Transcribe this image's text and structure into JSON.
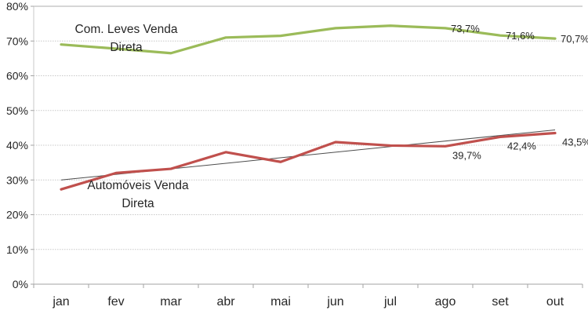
{
  "chart_data": {
    "type": "line",
    "title": "",
    "categories": [
      "jan",
      "fev",
      "mar",
      "abr",
      "mai",
      "jun",
      "jul",
      "ago",
      "set",
      "out"
    ],
    "series": [
      {
        "name": "Com. Leves Venda Direta",
        "label_lines": [
          "Com. Leves Venda",
          "Direta"
        ],
        "label_anchor": {
          "x": 161,
          "y": 42
        },
        "color": "#9BBB59",
        "values": [
          69.0,
          67.8,
          66.5,
          71.0,
          71.5,
          73.7,
          74.4,
          73.7,
          71.6,
          70.7
        ],
        "data_labels": [
          {
            "index": 7,
            "text": "73,7%"
          },
          {
            "index": 8,
            "text": "71,6%"
          },
          {
            "index": 9,
            "text": "70,7%"
          }
        ],
        "label_placement": "right"
      },
      {
        "name": "Automóveis Venda Direta",
        "label_lines": [
          "Automóveis Venda",
          "Direta"
        ],
        "label_anchor": {
          "x": 176,
          "y": 241
        },
        "color": "#C0504D",
        "values": [
          27.3,
          32.0,
          33.2,
          38.0,
          35.2,
          40.9,
          39.9,
          39.7,
          42.4,
          43.5
        ],
        "data_labels": [
          {
            "index": 7,
            "text": "39,7%"
          },
          {
            "index": 8,
            "text": "42,4%"
          },
          {
            "index": 9,
            "text": "43,5%"
          }
        ],
        "label_placement": "below-right"
      }
    ],
    "trendline": {
      "series": "Automóveis Venda Direta",
      "start_value": 30.0,
      "end_value": 44.4,
      "color": "#4d4d4d"
    },
    "y_axis": {
      "min": 0,
      "max": 80,
      "step": 10,
      "tick_labels": [
        "0%",
        "10%",
        "20%",
        "30%",
        "40%",
        "50%",
        "60%",
        "70%",
        "80%"
      ]
    },
    "grid": {
      "show": true,
      "color": "#c8c8c8"
    },
    "axis_color": "#a3a3a3",
    "minor_axis_color": "#c9c9c9",
    "text_color": "#262626",
    "background": "#ffffff",
    "legend_position": "none"
  }
}
